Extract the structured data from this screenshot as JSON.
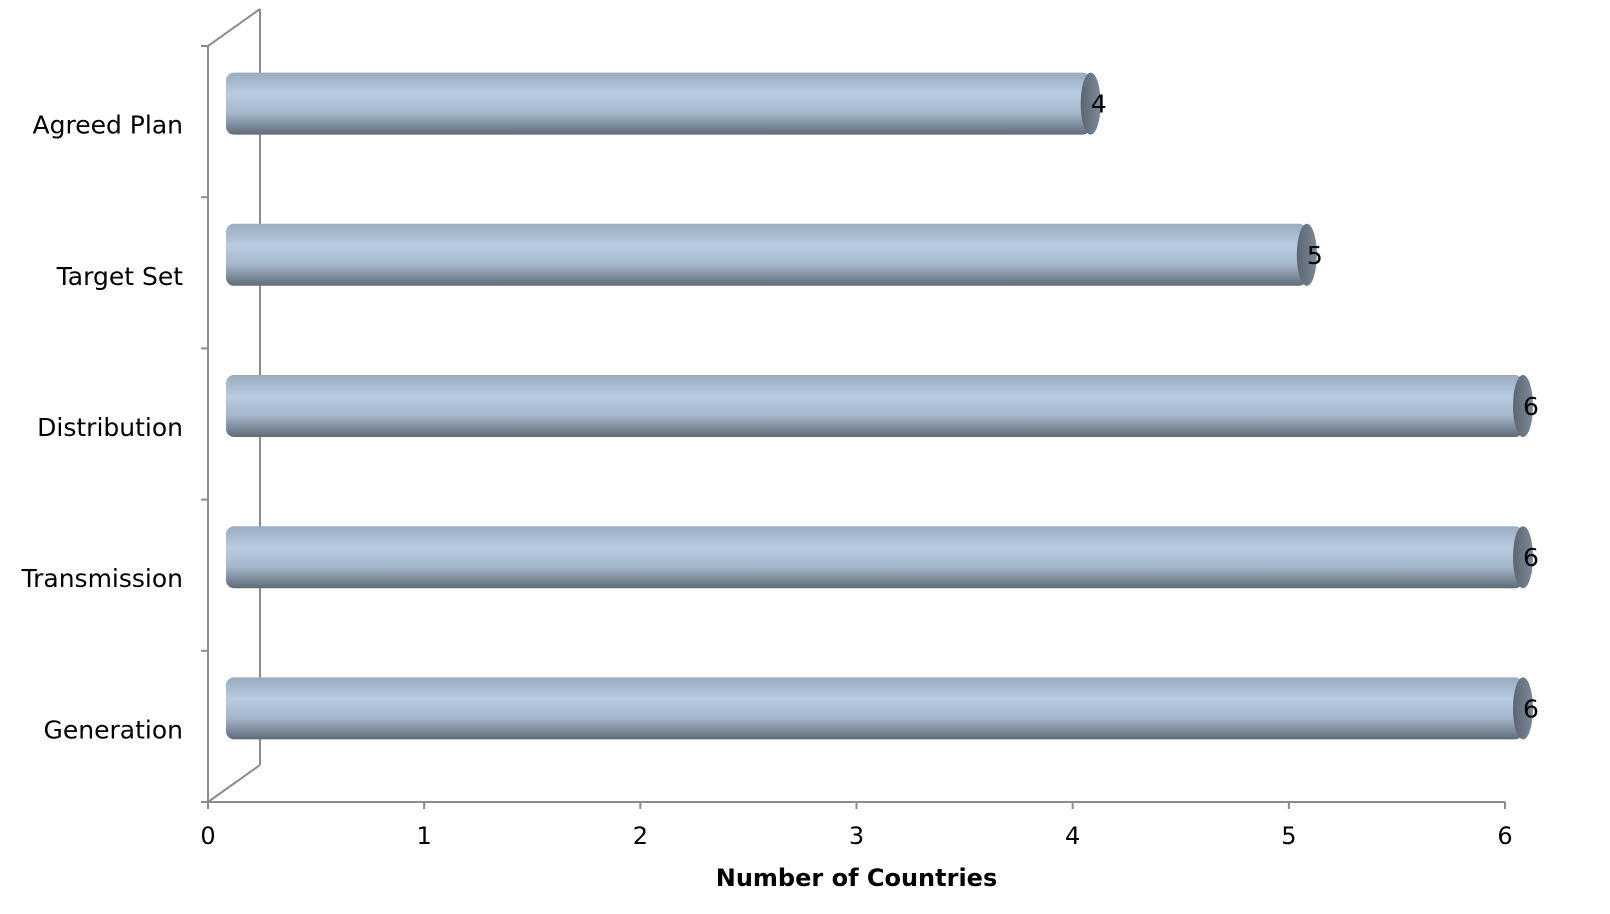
{
  "chart_data": {
    "type": "bar",
    "orientation": "horizontal",
    "style": "3d-cylinder",
    "categories": [
      "Generation",
      "Transmission",
      "Distribution",
      "Target Set",
      "Agreed Plan"
    ],
    "values": [
      6,
      6,
      6,
      5,
      4
    ],
    "data_labels": [
      "6",
      "6",
      "6",
      "5",
      "4"
    ],
    "title": "",
    "xlabel": "Number of Countries",
    "ylabel": "",
    "xlim": [
      0,
      6
    ],
    "x_ticks": [
      "0",
      "1",
      "2",
      "3",
      "4",
      "5",
      "6"
    ],
    "grid": false,
    "legend": "none",
    "colors": {
      "bar_light": "#b9cbe0",
      "bar_mid": "#9aabbe",
      "bar_dark": "#5f6b77",
      "bar_cap": "#6e7c8a",
      "axis": "#8c8c8c",
      "text": "#000000"
    }
  }
}
